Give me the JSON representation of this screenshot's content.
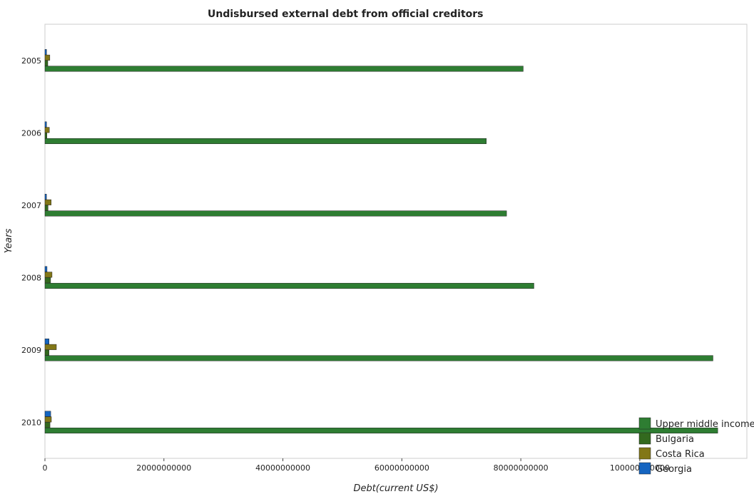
{
  "chart_data": {
    "type": "bar",
    "orientation": "horizontal",
    "title": "Undisbursed external debt from official creditors",
    "xlabel": "Debt(current US$)",
    "ylabel": "Years",
    "categories": [
      "2005",
      "2006",
      "2007",
      "2008",
      "2009",
      "2010"
    ],
    "x_ticks": [
      "0",
      "20000000000",
      "40000000000",
      "60000000000",
      "80000000000",
      "100000000000"
    ],
    "xlim": [
      0,
      118000000000
    ],
    "series": [
      {
        "name": "Upper middle income",
        "color": "#2e7d32",
        "values": [
          80400000000,
          74200000000,
          77600000000,
          82200000000,
          112300000000,
          113100000000
        ]
      },
      {
        "name": "Bulgaria",
        "color": "#33691e",
        "values": [
          480000000,
          330000000,
          520000000,
          950000000,
          680000000,
          850000000
        ]
      },
      {
        "name": "Costa Rica",
        "color": "#827717",
        "values": [
          820000000,
          740000000,
          1050000000,
          1190000000,
          1920000000,
          1080000000
        ]
      },
      {
        "name": "Georgia",
        "color": "#1565c0",
        "values": [
          270000000,
          270000000,
          260000000,
          350000000,
          690000000,
          970000000
        ]
      }
    ],
    "legend_position": "bottom-right",
    "grid": false
  }
}
